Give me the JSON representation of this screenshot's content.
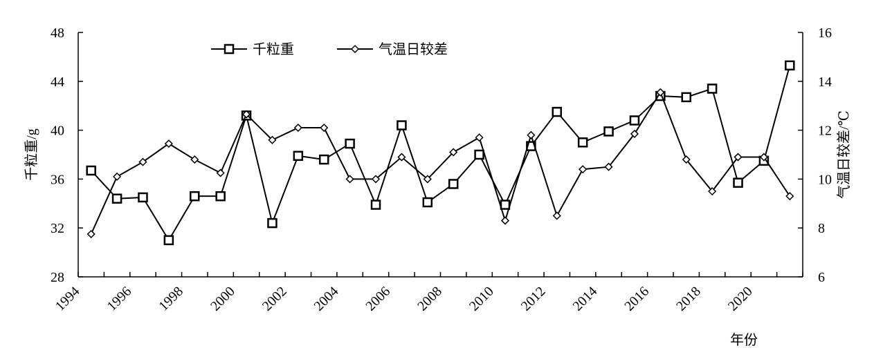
{
  "chart_data": {
    "type": "line",
    "xlabel": "年份",
    "ylabel_left": "千粒重/g",
    "ylabel_right": "气温日较差/℃",
    "y_left_range": [
      28,
      48
    ],
    "y_left_ticks": [
      28,
      32,
      36,
      40,
      44,
      48
    ],
    "y_right_range": [
      6,
      16
    ],
    "y_right_ticks": [
      6,
      8,
      10,
      12,
      14,
      16
    ],
    "x_tick_labels": [
      "1994",
      "1996",
      "1998",
      "2000",
      "2002",
      "2004",
      "2006",
      "2008",
      "2010",
      "2012",
      "2014",
      "2016",
      "2018",
      "2020"
    ],
    "grid": false,
    "legend_position": "top",
    "series": [
      {
        "name": "千粒重",
        "axis": "left",
        "marker": "square",
        "x": [
          1994,
          1995,
          1996,
          1997,
          1998,
          1999,
          2000,
          2001,
          2002,
          2003,
          2004,
          2005,
          2006,
          2007,
          2008,
          2009,
          2010,
          2011,
          2012,
          2013,
          2014,
          2015,
          2016,
          2017,
          2018,
          2019,
          2020,
          2021
        ],
        "values": [
          36.7,
          34.4,
          34.5,
          31.0,
          34.6,
          34.6,
          41.2,
          32.4,
          37.9,
          37.6,
          38.9,
          33.9,
          40.4,
          34.1,
          35.6,
          38.0,
          33.9,
          38.7,
          41.5,
          39.0,
          39.9,
          40.8,
          42.8,
          42.7,
          43.4,
          35.7,
          37.5,
          45.3
        ]
      },
      {
        "name": "气温日较差",
        "axis": "right",
        "marker": "diamond",
        "x": [
          1994,
          1995,
          1996,
          1997,
          1998,
          1999,
          2000,
          2001,
          2002,
          2003,
          2004,
          2005,
          2006,
          2007,
          2008,
          2009,
          2010,
          2011,
          2012,
          2013,
          2014,
          2015,
          2016,
          2017,
          2018,
          2019,
          2020,
          2021
        ],
        "values": [
          7.75,
          10.1,
          10.7,
          11.45,
          10.8,
          10.25,
          12.65,
          11.6,
          12.1,
          12.1,
          10.0,
          10.0,
          10.9,
          10.0,
          11.1,
          11.7,
          8.3,
          11.8,
          8.5,
          10.4,
          10.5,
          11.85,
          13.55,
          10.8,
          9.5,
          10.9,
          10.9,
          9.3
        ]
      }
    ]
  }
}
